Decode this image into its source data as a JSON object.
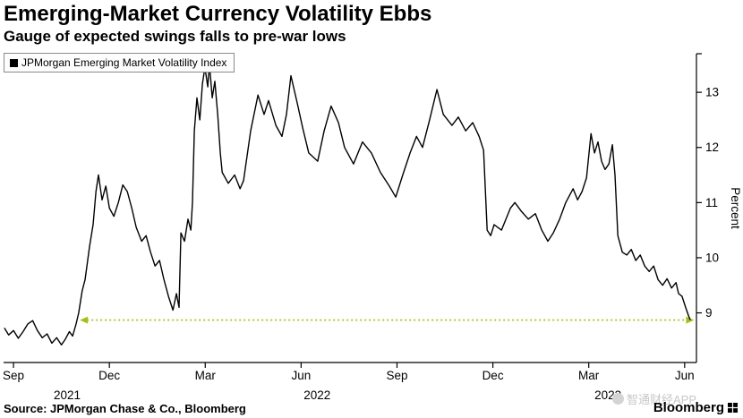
{
  "footer": {
    "source": "Source: JPMorgan Chase & Co., Bloomberg",
    "brand": "Bloomberg",
    "watermark": "智通财经APP"
  },
  "chart_data": {
    "type": "line",
    "title": "Emerging-Market Currency Volatility Ebbs",
    "subtitle": "Gauge of expected swings falls to pre-war lows",
    "legend": [
      "JPMorgan Emerging Market Volatility Index"
    ],
    "legend_position": "top-left",
    "ylabel": "Percent",
    "y_ticks": [
      9,
      10,
      11,
      12,
      13
    ],
    "ylim": [
      8.1,
      13.7
    ],
    "x_unit": "months since Sep 2021",
    "xlim": [
      -0.31,
      21.37
    ],
    "grid": false,
    "line_color": "#000000",
    "x_ticks": [
      {
        "t": 0,
        "label": "Sep"
      },
      {
        "t": 3,
        "label": "Dec"
      },
      {
        "t": 6,
        "label": "Mar"
      },
      {
        "t": 9,
        "label": "Jun"
      },
      {
        "t": 12,
        "label": "Sep"
      },
      {
        "t": 15,
        "label": "Dec"
      },
      {
        "t": 18,
        "label": "Mar"
      },
      {
        "t": 21,
        "label": "Jun"
      }
    ],
    "year_labels": [
      {
        "t": 1.68,
        "label": "2021"
      },
      {
        "t": 9.5,
        "label": "2022"
      },
      {
        "t": 18.6,
        "label": "2023"
      }
    ],
    "reference_line": {
      "value": 8.87,
      "t_start": 2.3,
      "t_end": 21.1,
      "color": "#a2c117",
      "style": "dotted",
      "arrows": "both",
      "meaning": "pre-war low level"
    },
    "series": [
      {
        "name": "JPMorgan Emerging Market Volatility Index",
        "points": [
          [
            -0.28,
            8.72
          ],
          [
            -0.15,
            8.6
          ],
          [
            0.0,
            8.68
          ],
          [
            0.15,
            8.54
          ],
          [
            0.3,
            8.66
          ],
          [
            0.45,
            8.8
          ],
          [
            0.6,
            8.86
          ],
          [
            0.75,
            8.68
          ],
          [
            0.9,
            8.55
          ],
          [
            1.05,
            8.62
          ],
          [
            1.2,
            8.45
          ],
          [
            1.35,
            8.55
          ],
          [
            1.5,
            8.42
          ],
          [
            1.62,
            8.52
          ],
          [
            1.75,
            8.66
          ],
          [
            1.85,
            8.58
          ],
          [
            1.95,
            8.78
          ],
          [
            2.04,
            9.0
          ],
          [
            2.15,
            9.4
          ],
          [
            2.24,
            9.6
          ],
          [
            2.38,
            10.2
          ],
          [
            2.49,
            10.6
          ],
          [
            2.58,
            11.2
          ],
          [
            2.66,
            11.5
          ],
          [
            2.77,
            11.05
          ],
          [
            2.89,
            11.3
          ],
          [
            3.0,
            10.9
          ],
          [
            3.14,
            10.75
          ],
          [
            3.28,
            11.0
          ],
          [
            3.42,
            11.32
          ],
          [
            3.56,
            11.2
          ],
          [
            3.7,
            10.9
          ],
          [
            3.84,
            10.55
          ],
          [
            4.01,
            10.3
          ],
          [
            4.15,
            10.4
          ],
          [
            4.29,
            10.1
          ],
          [
            4.43,
            9.85
          ],
          [
            4.57,
            9.95
          ],
          [
            4.71,
            9.6
          ],
          [
            4.85,
            9.3
          ],
          [
            4.99,
            9.05
          ],
          [
            5.1,
            9.35
          ],
          [
            5.18,
            9.1
          ],
          [
            5.24,
            10.45
          ],
          [
            5.35,
            10.3
          ],
          [
            5.46,
            10.7
          ],
          [
            5.55,
            10.5
          ],
          [
            5.6,
            11.0
          ],
          [
            5.66,
            12.3
          ],
          [
            5.74,
            12.9
          ],
          [
            5.83,
            12.5
          ],
          [
            5.91,
            13.15
          ],
          [
            5.99,
            13.45
          ],
          [
            6.08,
            13.1
          ],
          [
            6.13,
            13.52
          ],
          [
            6.22,
            12.9
          ],
          [
            6.3,
            13.2
          ],
          [
            6.39,
            12.6
          ],
          [
            6.47,
            11.9
          ],
          [
            6.53,
            11.55
          ],
          [
            6.72,
            11.35
          ],
          [
            6.92,
            11.5
          ],
          [
            7.09,
            11.25
          ],
          [
            7.2,
            11.4
          ],
          [
            7.42,
            12.3
          ],
          [
            7.65,
            12.95
          ],
          [
            7.84,
            12.6
          ],
          [
            7.98,
            12.85
          ],
          [
            8.21,
            12.4
          ],
          [
            8.4,
            12.2
          ],
          [
            8.54,
            12.6
          ],
          [
            8.68,
            13.3
          ],
          [
            8.88,
            12.8
          ],
          [
            9.05,
            12.35
          ],
          [
            9.24,
            11.9
          ],
          [
            9.52,
            11.75
          ],
          [
            9.72,
            12.3
          ],
          [
            9.94,
            12.75
          ],
          [
            10.17,
            12.45
          ],
          [
            10.36,
            12.0
          ],
          [
            10.64,
            11.7
          ],
          [
            10.92,
            12.1
          ],
          [
            11.2,
            11.9
          ],
          [
            11.48,
            11.55
          ],
          [
            11.76,
            11.3
          ],
          [
            11.96,
            11.1
          ],
          [
            12.18,
            11.5
          ],
          [
            12.41,
            11.9
          ],
          [
            12.61,
            12.2
          ],
          [
            12.8,
            12.0
          ],
          [
            13.02,
            12.5
          ],
          [
            13.25,
            13.05
          ],
          [
            13.45,
            12.6
          ],
          [
            13.72,
            12.4
          ],
          [
            13.92,
            12.55
          ],
          [
            14.15,
            12.3
          ],
          [
            14.37,
            12.45
          ],
          [
            14.57,
            12.2
          ],
          [
            14.71,
            11.95
          ],
          [
            14.82,
            10.5
          ],
          [
            14.93,
            10.4
          ],
          [
            15.04,
            10.6
          ],
          [
            15.27,
            10.5
          ],
          [
            15.55,
            10.9
          ],
          [
            15.69,
            11.0
          ],
          [
            15.88,
            10.85
          ],
          [
            16.11,
            10.7
          ],
          [
            16.33,
            10.8
          ],
          [
            16.53,
            10.5
          ],
          [
            16.72,
            10.3
          ],
          [
            16.89,
            10.45
          ],
          [
            17.09,
            10.7
          ],
          [
            17.28,
            11.0
          ],
          [
            17.51,
            11.25
          ],
          [
            17.65,
            11.05
          ],
          [
            17.79,
            11.2
          ],
          [
            17.93,
            11.45
          ],
          [
            18.07,
            12.25
          ],
          [
            18.18,
            11.9
          ],
          [
            18.29,
            12.1
          ],
          [
            18.4,
            11.75
          ],
          [
            18.51,
            11.6
          ],
          [
            18.63,
            11.7
          ],
          [
            18.74,
            12.05
          ],
          [
            18.82,
            11.5
          ],
          [
            18.91,
            10.4
          ],
          [
            19.05,
            10.1
          ],
          [
            19.19,
            10.05
          ],
          [
            19.33,
            10.15
          ],
          [
            19.47,
            9.95
          ],
          [
            19.61,
            10.05
          ],
          [
            19.75,
            9.85
          ],
          [
            19.89,
            9.75
          ],
          [
            20.03,
            9.85
          ],
          [
            20.17,
            9.6
          ],
          [
            20.31,
            9.5
          ],
          [
            20.45,
            9.62
          ],
          [
            20.59,
            9.45
          ],
          [
            20.73,
            9.55
          ],
          [
            20.81,
            9.35
          ],
          [
            20.92,
            9.3
          ],
          [
            21.03,
            9.1
          ],
          [
            21.12,
            8.95
          ],
          [
            21.17,
            8.88
          ]
        ]
      }
    ]
  }
}
